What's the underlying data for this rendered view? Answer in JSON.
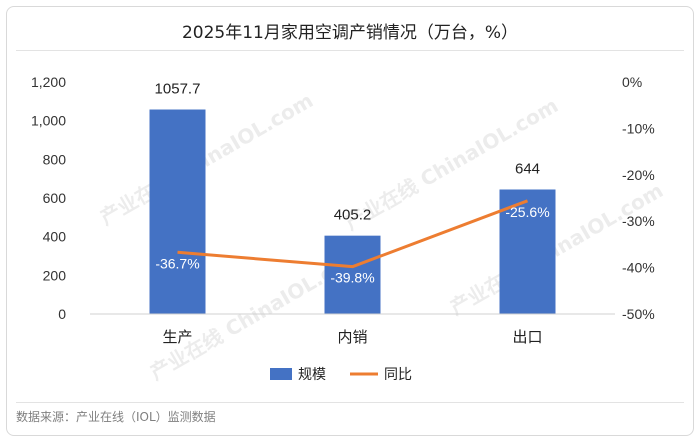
{
  "chart_data": {
    "type": "bar",
    "title": "2025年11月家用空调产销情况（万台，%）",
    "categories": [
      "生产",
      "内销",
      "出口"
    ],
    "series": [
      {
        "name": "规模",
        "type": "bar",
        "axis": "left",
        "color": "#4472c4",
        "values": [
          1057.7,
          405.2,
          644
        ],
        "labels": [
          "1057.7",
          "405.2",
          "644"
        ]
      },
      {
        "name": "同比",
        "type": "line",
        "axis": "right",
        "color": "#ed7d31",
        "values": [
          -36.7,
          -39.8,
          -25.6
        ],
        "labels": [
          "-36.7%",
          "-39.8%",
          "-25.6%"
        ]
      }
    ],
    "ylim_left": [
      0,
      1200
    ],
    "yticks_left": [
      "0",
      "200",
      "400",
      "600",
      "800",
      "1,000",
      "1,200"
    ],
    "ylim_right": [
      -50,
      0
    ],
    "yticks_right": [
      "-50%",
      "-40%",
      "-30%",
      "-20%",
      "-10%",
      "0%"
    ],
    "legend_position": "bottom",
    "grid": false
  },
  "watermark": "产业在线 ChinaIOL.com",
  "footer": "数据来源：产业在线（IOL）监测数据"
}
